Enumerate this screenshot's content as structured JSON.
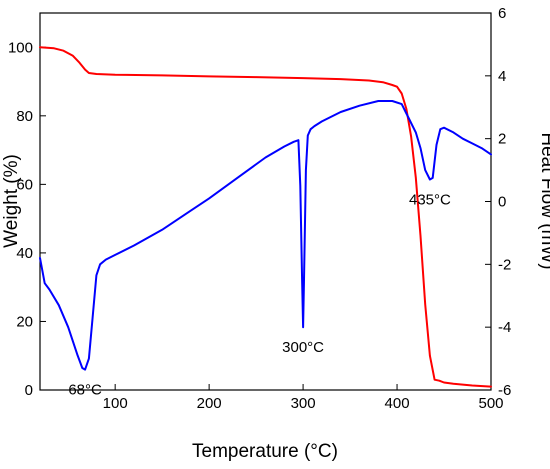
{
  "chart_data": {
    "type": "line",
    "xlabel": "Temperature (°C)",
    "ylabel_left": "Weight (%)",
    "ylabel_right": "Heat Flow (mW)",
    "xlim": [
      20,
      500
    ],
    "ylim_left": [
      0,
      110
    ],
    "ylim_right": [
      -6,
      6
    ],
    "x_ticks": [
      100,
      200,
      300,
      400,
      500
    ],
    "y_ticks_left": [
      0,
      20,
      40,
      60,
      80,
      100
    ],
    "y_ticks_right": [
      -6,
      -4,
      -2,
      0,
      2,
      4,
      6
    ],
    "grid": false,
    "series": [
      {
        "axis": "left",
        "color": "#ff0000",
        "x": [
          20,
          35,
          45,
          55,
          62,
          68,
          72,
          80,
          100,
          150,
          200,
          250,
          300,
          340,
          370,
          385,
          395,
          400,
          405,
          410,
          415,
          420,
          425,
          430,
          435,
          440,
          445,
          450,
          460,
          480,
          500
        ],
        "y": [
          100,
          99.7,
          99,
          97.5,
          95.5,
          93.5,
          92.5,
          92.2,
          92,
          91.8,
          91.5,
          91.3,
          91,
          90.7,
          90.3,
          89.8,
          89,
          88.5,
          86.5,
          82,
          74,
          62,
          45,
          25,
          10,
          3,
          2.7,
          2.2,
          1.8,
          1.3,
          1
        ]
      },
      {
        "axis": "right",
        "color": "#0000ff",
        "x": [
          20,
          25,
          30,
          40,
          50,
          55,
          60,
          65,
          68,
          72,
          76,
          80,
          84,
          90,
          100,
          120,
          150,
          180,
          200,
          230,
          260,
          280,
          290,
          295,
          297,
          299,
          300,
          301,
          303,
          305,
          308,
          312,
          320,
          340,
          360,
          380,
          395,
          405,
          410,
          415,
          420,
          425,
          430,
          435,
          438,
          442,
          446,
          450,
          460,
          470,
          480,
          490,
          500
        ],
        "y": [
          -1.8,
          -2.6,
          -2.8,
          -3.3,
          -4.0,
          -4.45,
          -4.9,
          -5.3,
          -5.35,
          -5.0,
          -3.7,
          -2.35,
          -2.0,
          -1.85,
          -1.7,
          -1.4,
          -0.9,
          -0.3,
          0.1,
          0.75,
          1.4,
          1.75,
          1.9,
          1.95,
          0.5,
          -2.5,
          -4.0,
          -2.5,
          1.0,
          2.1,
          2.3,
          2.4,
          2.55,
          2.85,
          3.05,
          3.2,
          3.2,
          3.1,
          2.8,
          2.5,
          2.2,
          1.7,
          1.0,
          0.7,
          0.75,
          1.8,
          2.3,
          2.35,
          2.2,
          2.0,
          1.85,
          1.7,
          1.5
        ]
      }
    ],
    "annotations": [
      {
        "text": "68°C",
        "x": 68,
        "y_right": -5.35,
        "position": "below"
      },
      {
        "text": "300°C",
        "x": 300,
        "y_right": -4.0,
        "position": "below"
      },
      {
        "text": "435°C",
        "x": 435,
        "y_right": 0.7,
        "position": "below"
      }
    ]
  }
}
